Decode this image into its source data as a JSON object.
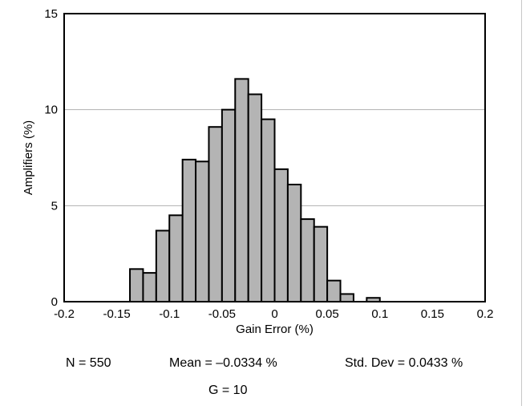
{
  "chart_data": {
    "type": "bar",
    "title": "",
    "xlabel": "Gain Error (%)",
    "ylabel": "Amplifiers (%)",
    "xlim": [
      -0.2,
      0.2
    ],
    "ylim": [
      0,
      15
    ],
    "x_ticks": [
      "-0.2",
      "-0.15",
      "-0.1",
      "-0.05",
      "0",
      "0.05",
      "0.1",
      "0.15",
      "0.2"
    ],
    "y_ticks": [
      "0",
      "5",
      "10",
      "15"
    ],
    "grid": "horizontal",
    "bar_color": "#b4b4b4",
    "bar_edge_color": "#000000",
    "bin_width": 0.0125,
    "bin_starts": [
      -0.1375,
      -0.125,
      -0.1125,
      -0.1,
      -0.0875,
      -0.075,
      -0.0625,
      -0.05,
      -0.0375,
      -0.025,
      -0.0125,
      0,
      0.0125,
      0.025,
      0.0375,
      0.05,
      0.0625,
      0.075,
      0.0875
    ],
    "values": [
      1.7,
      1.5,
      3.7,
      4.5,
      7.4,
      7.3,
      9.1,
      10.0,
      11.6,
      10.8,
      9.5,
      6.9,
      6.1,
      4.3,
      3.9,
      1.1,
      0.4,
      0.0,
      0.2
    ]
  },
  "stats": {
    "n": "N = 550",
    "mean": "Mean = –0.0334 %",
    "std": "Std. Dev = 0.0433 %",
    "gain": "G = 10"
  }
}
